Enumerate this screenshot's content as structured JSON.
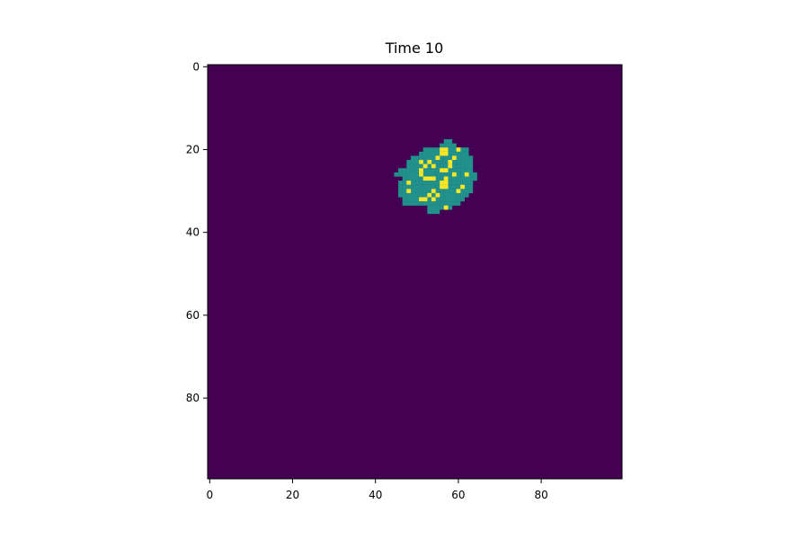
{
  "chart_data": {
    "type": "heatmap",
    "title": "Time 10",
    "xlabel": "",
    "ylabel": "",
    "grid": false,
    "shape": [
      100,
      100
    ],
    "xlim": [
      -0.5,
      99.5
    ],
    "ylim": [
      99.5,
      -0.5
    ],
    "x_ticks": [
      0,
      20,
      40,
      60,
      80
    ],
    "y_ticks": [
      0,
      20,
      40,
      60,
      80
    ],
    "colormap": "viridis",
    "states": [
      {
        "value": 0,
        "color": "#440154"
      },
      {
        "value": 1,
        "color": "#21918c"
      },
      {
        "value": 2,
        "color": "#fde725"
      }
    ],
    "background_value": 0,
    "rows": [
      {
        "row": 18,
        "state1": [
          [
            57,
            58
          ]
        ]
      },
      {
        "row": 19,
        "state1": [
          [
            56,
            59
          ]
        ]
      },
      {
        "row": 20,
        "state1": [
          [
            52,
            62
          ]
        ],
        "state2": [
          56,
          57,
          60
        ]
      },
      {
        "row": 21,
        "state1": [
          [
            51,
            62
          ]
        ],
        "state2": [
          56,
          57
        ]
      },
      {
        "row": 22,
        "state1": [
          [
            49,
            63
          ]
        ],
        "state2": [
          55,
          59
        ]
      },
      {
        "row": 23,
        "state1": [
          [
            48,
            63
          ]
        ],
        "state2": [
          51,
          53,
          58
        ]
      },
      {
        "row": 24,
        "state1": [
          [
            48,
            63
          ]
        ],
        "state2": [
          52,
          54,
          58
        ]
      },
      {
        "row": 25,
        "state1": [
          [
            46,
            63
          ]
        ],
        "state2": [
          51,
          56,
          57
        ]
      },
      {
        "row": 26,
        "state1": [
          [
            45,
            64
          ]
        ],
        "state2": [
          51,
          59,
          62
        ]
      },
      {
        "row": 27,
        "state1": [
          [
            47,
            64
          ]
        ],
        "state2": [
          52,
          53,
          54,
          57
        ]
      },
      {
        "row": 28,
        "state1": [
          [
            46,
            63
          ]
        ],
        "state2": [
          48,
          56,
          57
        ]
      },
      {
        "row": 29,
        "state1": [
          [
            46,
            63
          ]
        ],
        "state2": [
          56,
          57,
          61
        ]
      },
      {
        "row": 30,
        "state1": [
          [
            46,
            63
          ]
        ],
        "state2": [
          48,
          54,
          60
        ]
      },
      {
        "row": 31,
        "state1": [
          [
            46,
            62
          ]
        ],
        "state2": [
          53,
          55
        ]
      },
      {
        "row": 32,
        "state1": [
          [
            47,
            61
          ]
        ],
        "state2": [
          51,
          52,
          54
        ]
      },
      {
        "row": 33,
        "state1": [
          [
            47,
            60
          ]
        ]
      },
      {
        "row": 34,
        "state1": [
          [
            53,
            58
          ]
        ],
        "state2": [
          57
        ]
      },
      {
        "row": 35,
        "state1": [
          [
            53,
            55
          ]
        ]
      }
    ]
  }
}
